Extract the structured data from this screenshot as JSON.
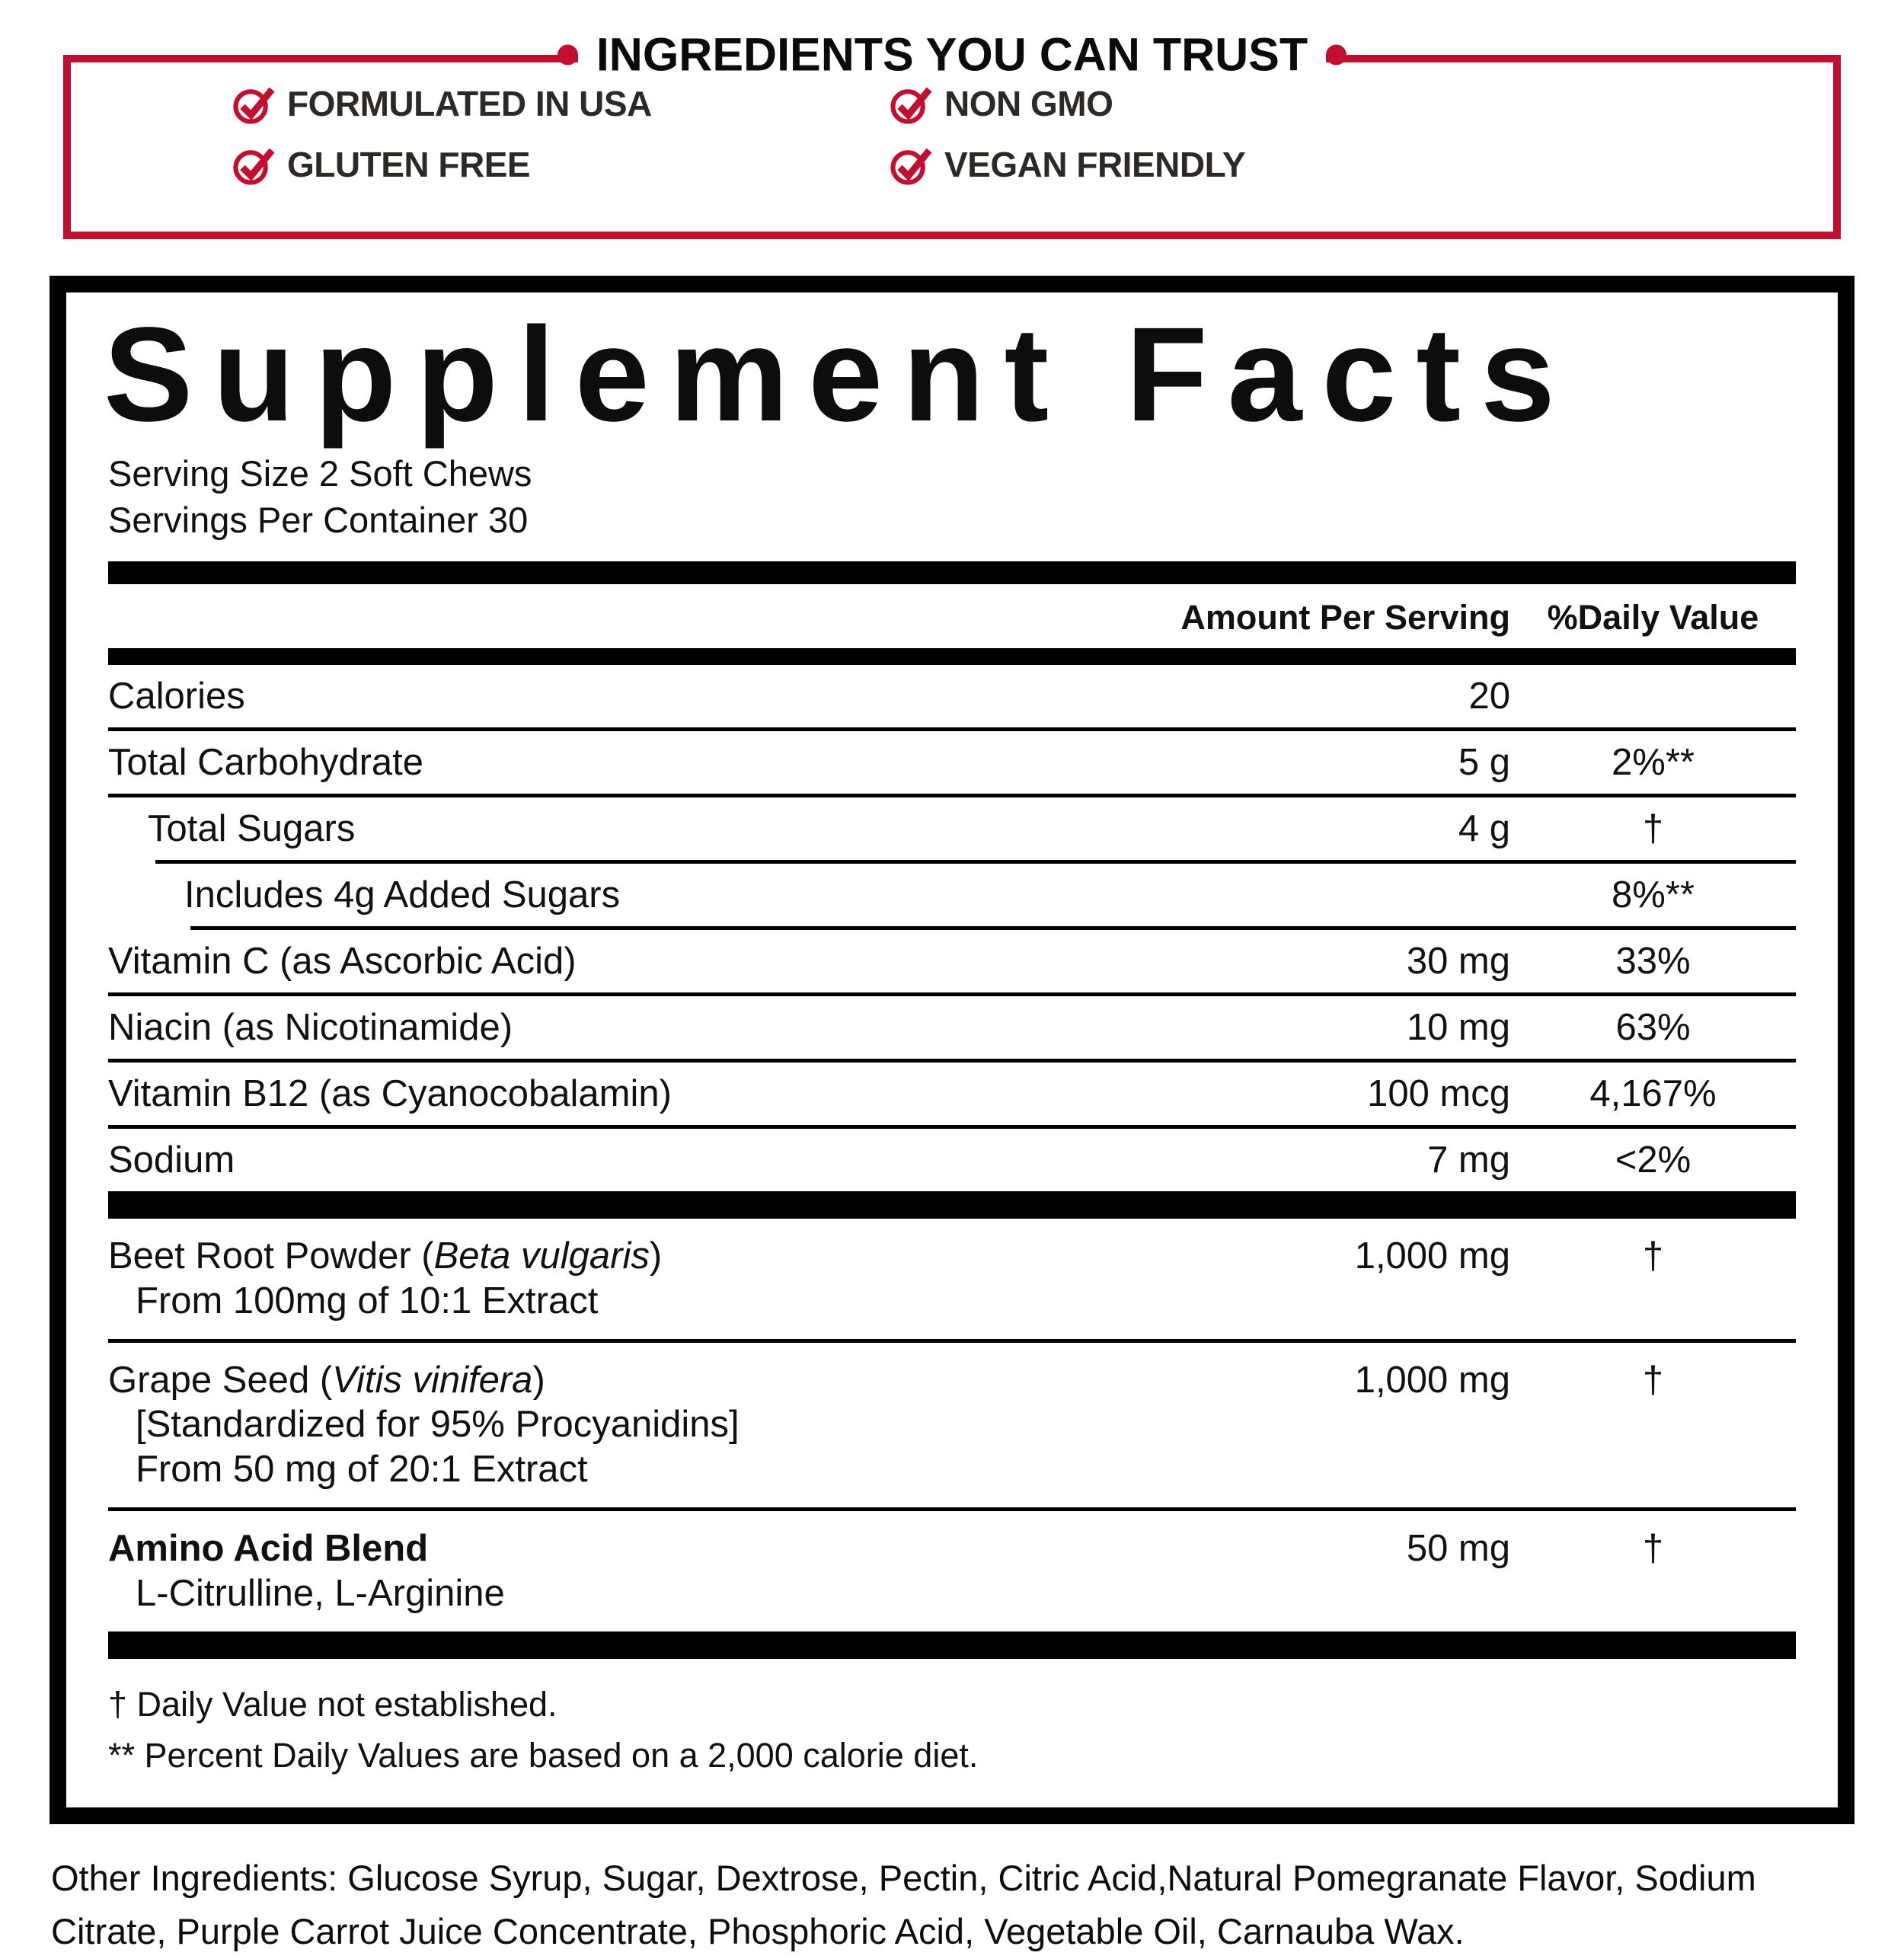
{
  "colors": {
    "accent_red": "#C20F2F",
    "badge_text": "#2D2926",
    "ink": "#111111"
  },
  "trust": {
    "title": "INGREDIENTS YOU CAN TRUST",
    "items": [
      {
        "label": "FORMULATED IN USA",
        "icon": "check-circle"
      },
      {
        "label": "GLUTEN FREE",
        "icon": "check-circle"
      },
      {
        "label": "NON GMO",
        "icon": "check-circle"
      },
      {
        "label": "VEGAN FRIENDLY",
        "icon": "check-circle"
      }
    ]
  },
  "facts": {
    "title": "Supplement Facts",
    "serving_size": "Serving Size 2 Soft Chews",
    "servings_per_container": "Servings Per Container 30",
    "headers": {
      "amount": "Amount Per Serving",
      "daily_value": "%Daily Value"
    },
    "nutrients": [
      {
        "name": "Calories",
        "amount": "20",
        "dv": "",
        "indent": 0
      },
      {
        "name": "Total Carbohydrate",
        "amount": "5 g",
        "dv": "2%**",
        "indent": 0
      },
      {
        "name": "Total Sugars",
        "amount": "4 g",
        "dv": "†",
        "indent": 1
      },
      {
        "name": "Includes 4g Added Sugars",
        "amount": "",
        "dv": "8%**",
        "indent": 2
      },
      {
        "name": "Vitamin C (as Ascorbic Acid)",
        "amount": "30 mg",
        "dv": "33%",
        "indent": 0
      },
      {
        "name": "Niacin (as Nicotinamide)",
        "amount": "10 mg",
        "dv": "63%",
        "indent": 0
      },
      {
        "name": "Vitamin B12 (as Cyanocobalamin)",
        "amount": "100 mcg",
        "dv": "4,167%",
        "indent": 0
      },
      {
        "name": "Sodium",
        "amount": "7 mg",
        "dv": "<2%",
        "indent": 0
      }
    ],
    "botanicals": [
      {
        "name_parts": [
          {
            "text": "Beet Root Powder (",
            "italic": false
          },
          {
            "text": "Beta vulgaris",
            "italic": true
          },
          {
            "text": ")",
            "italic": false
          }
        ],
        "bold": false,
        "details": [
          "From 100mg of 10:1 Extract"
        ],
        "amount": "1,000 mg",
        "dv": "†"
      },
      {
        "name_parts": [
          {
            "text": "Grape Seed (",
            "italic": false
          },
          {
            "text": "Vitis vinifera",
            "italic": true
          },
          {
            "text": ")",
            "italic": false
          }
        ],
        "bold": false,
        "details": [
          "[Standardized for 95% Procyanidins]",
          "From 50 mg of 20:1 Extract"
        ],
        "amount": "1,000 mg",
        "dv": "†"
      },
      {
        "name_parts": [
          {
            "text": "Amino Acid Blend",
            "italic": false
          }
        ],
        "bold": true,
        "details": [
          "L-Citrulline, L-Arginine"
        ],
        "amount": "50 mg",
        "dv": "†"
      }
    ],
    "footnotes": [
      "† Daily Value not established.",
      "** Percent Daily Values are based on a 2,000 calorie diet."
    ]
  },
  "other_ingredients": "Other Ingredients: Glucose Syrup, Sugar, Dextrose, Pectin, Citric Acid,Natural Pomegranate Flavor, Sodium Citrate, Purple Carrot Juice Concentrate, Phosphoric Acid, Vegetable Oil, Carnauba Wax."
}
